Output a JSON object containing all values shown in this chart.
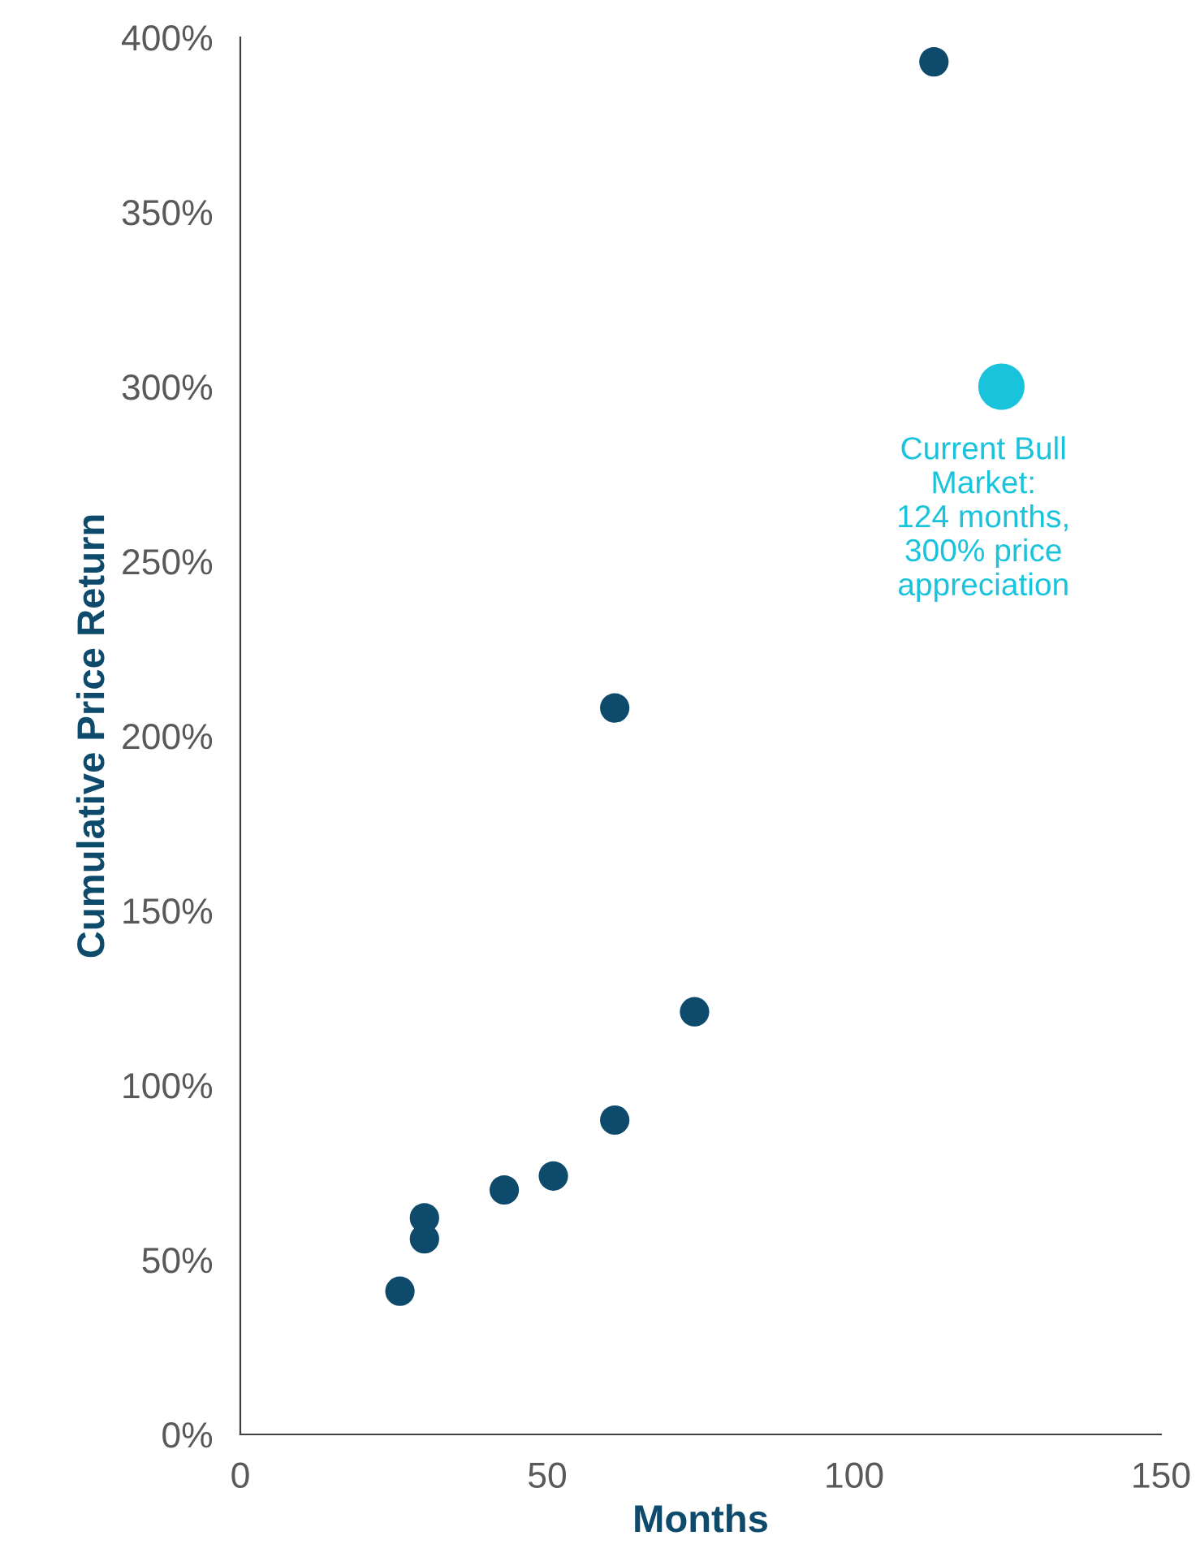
{
  "chart_data": {
    "type": "scatter",
    "xlabel": "Months",
    "ylabel": "Cumulative Price Return",
    "xlim": [
      0,
      150
    ],
    "xticks": [
      0,
      50,
      100,
      150
    ],
    "ylim": [
      0,
      400
    ],
    "yticks": [
      {
        "value": 0,
        "label": "0%"
      },
      {
        "value": 50,
        "label": "50%"
      },
      {
        "value": 100,
        "label": "100%"
      },
      {
        "value": 150,
        "label": "150%"
      },
      {
        "value": 200,
        "label": "200%"
      },
      {
        "value": 250,
        "label": "250%"
      },
      {
        "value": 300,
        "label": "300%"
      },
      {
        "value": 350,
        "label": "350%"
      },
      {
        "value": 400,
        "label": "400%"
      }
    ],
    "marker": "circle",
    "grid": false,
    "series": [
      {
        "color": "#0d4a6b",
        "x": [
          113,
          61,
          74,
          61,
          51,
          43,
          30,
          30,
          26
        ],
        "values": [
          393,
          208,
          121,
          90,
          74,
          70,
          62,
          56,
          41
        ]
      },
      {
        "color": "#19c3dc",
        "x": [
          124
        ],
        "values": [
          300
        ]
      }
    ],
    "annotations": [
      {
        "text": "Current Bull\nMarket:\n124 months,\n300% price\nappreciation",
        "x": 124,
        "y": 300
      }
    ]
  }
}
